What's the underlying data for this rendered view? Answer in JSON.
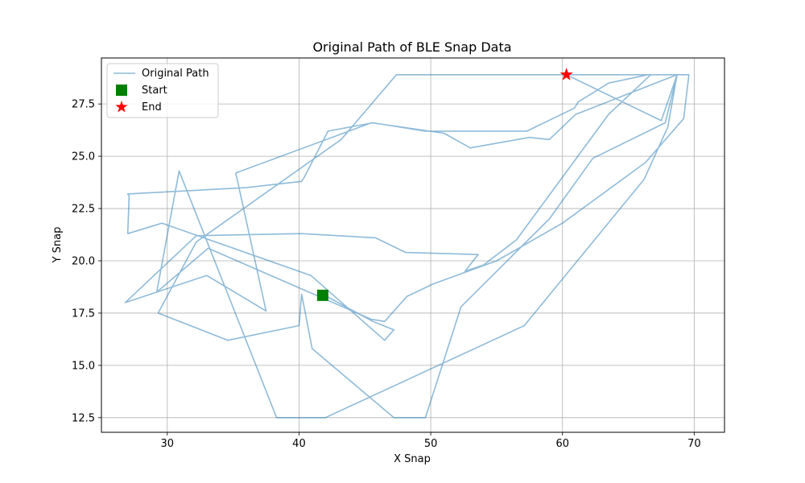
{
  "chart_data": {
    "type": "line",
    "title": "Original Path of BLE Snap Data",
    "xlabel": "X Snap",
    "ylabel": "Y Snap",
    "xlim": [
      25,
      72.3
    ],
    "ylim": [
      11.8,
      29.7
    ],
    "xticks": [
      30,
      40,
      50,
      60,
      70
    ],
    "yticks": [
      12.5,
      15.0,
      17.5,
      20.0,
      22.5,
      25.0,
      27.5
    ],
    "xtick_labels": [
      "30",
      "40",
      "50",
      "60",
      "70"
    ],
    "ytick_labels": [
      "12.5",
      "15.0",
      "17.5",
      "20.0",
      "22.5",
      "25.0",
      "27.5"
    ],
    "grid": true,
    "legend_position": "top-left",
    "colors": {
      "path": "#1f77b4",
      "start": "#008000",
      "end": "#ff0000"
    },
    "series": [
      {
        "name": "Original Path",
        "x": [
          41.8,
          45.6,
          47.2,
          46.5,
          40.9,
          29.6,
          27.0,
          27.1,
          27.0,
          36.0,
          40.2,
          40.4,
          42.2,
          45.6,
          49.6,
          57.3,
          60.9,
          61.2,
          63.5,
          66.5,
          66.7,
          63.5,
          56.5,
          54.0,
          52.6,
          53.6,
          48.1,
          45.8,
          40.2,
          32.2,
          26.8,
          33.0,
          37.5,
          35.2,
          45.5,
          51.0,
          53.0,
          57.5,
          59.0,
          61.0,
          68.7,
          68.0,
          66.2,
          57.1,
          42.0,
          38.3,
          30.9,
          29.2,
          33.1,
          45.5,
          46.5,
          48.2,
          50.2,
          55.0,
          60.0,
          66.3,
          69.2,
          69.6,
          60.1,
          47.4,
          43.2,
          32.2,
          29.3,
          34.6,
          40.0,
          40.2,
          41.0,
          47.2,
          49.6,
          52.3,
          56.6,
          59.0,
          62.3,
          67.8,
          68.7,
          67.5,
          60.3
        ],
        "y": [
          18.4,
          17.1,
          16.7,
          16.2,
          19.3,
          21.8,
          21.3,
          23.1,
          23.2,
          23.5,
          23.8,
          24.0,
          26.2,
          26.6,
          26.2,
          26.2,
          27.3,
          27.6,
          28.5,
          28.9,
          28.9,
          27.0,
          21.0,
          19.8,
          19.5,
          20.3,
          20.4,
          21.1,
          21.3,
          21.2,
          18.0,
          19.3,
          17.6,
          24.2,
          26.6,
          26.1,
          25.4,
          25.9,
          25.8,
          27.0,
          28.9,
          26.4,
          23.9,
          16.9,
          12.5,
          12.5,
          24.3,
          18.5,
          20.6,
          17.2,
          17.1,
          18.3,
          18.9,
          20.0,
          21.8,
          24.7,
          26.8,
          28.9,
          28.9,
          28.9,
          25.8,
          20.9,
          17.5,
          16.2,
          16.9,
          18.4,
          15.8,
          12.5,
          12.5,
          17.8,
          20.5,
          22.0,
          24.9,
          26.6,
          28.9,
          26.7,
          28.9
        ]
      }
    ],
    "start": {
      "x": 41.8,
      "y": 18.35
    },
    "end": {
      "x": 60.3,
      "y": 28.9
    },
    "legend": [
      {
        "label": "Original Path",
        "kind": "line"
      },
      {
        "label": "Start",
        "kind": "square"
      },
      {
        "label": "End",
        "kind": "star"
      }
    ]
  }
}
